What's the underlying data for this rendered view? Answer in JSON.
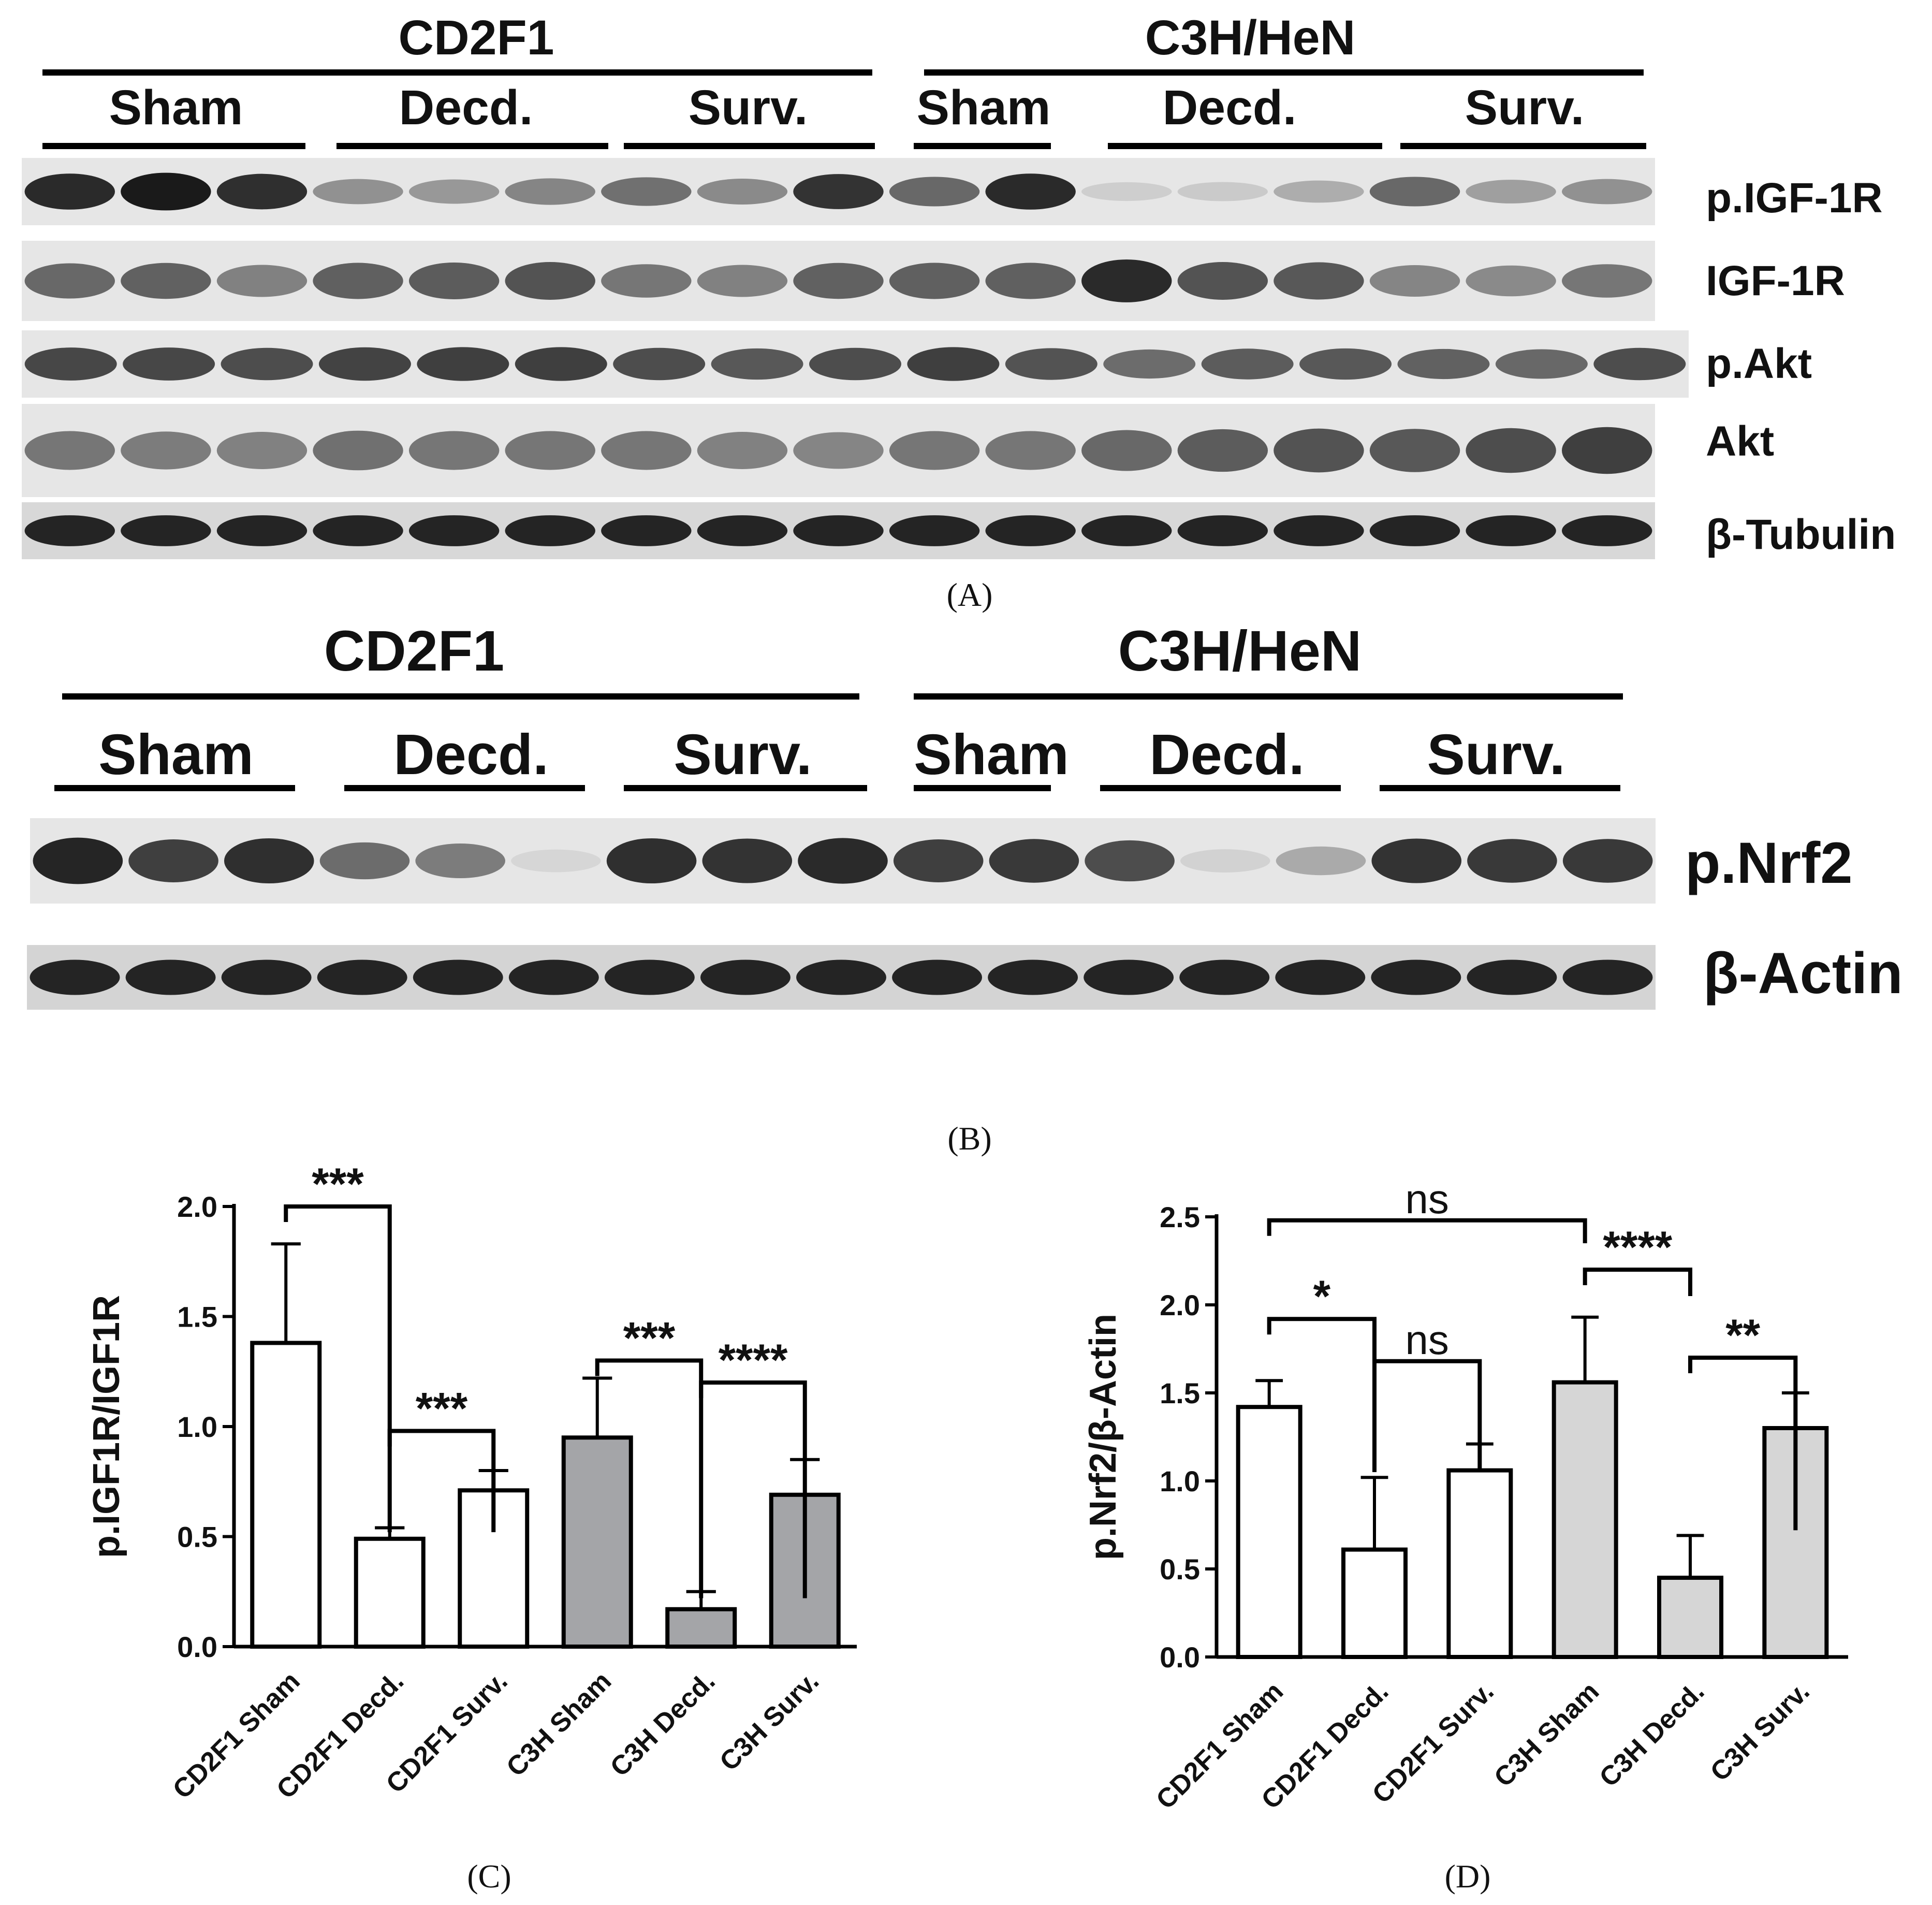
{
  "panel_a": {
    "caption": "(A)",
    "strains": [
      "CD2F1",
      "C3H/HeN"
    ],
    "groups": [
      "Sham",
      "Decd.",
      "Surv.",
      "Sham",
      "Decd.",
      "Surv."
    ],
    "bands": [
      {
        "label": "p.IGF-1R",
        "intensity": [
          0.92,
          1.0,
          0.9,
          0.42,
          0.38,
          0.48,
          0.58,
          0.45,
          0.88,
          0.62,
          0.92,
          0.12,
          0.14,
          0.28,
          0.62,
          0.35,
          0.42
        ]
      },
      {
        "label": "IGF-1R",
        "intensity": [
          0.62,
          0.65,
          0.5,
          0.66,
          0.68,
          0.72,
          0.55,
          0.5,
          0.65,
          0.66,
          0.66,
          0.92,
          0.72,
          0.7,
          0.48,
          0.45,
          0.55
        ]
      },
      {
        "label": "p.Akt",
        "intensity": [
          0.78,
          0.78,
          0.75,
          0.8,
          0.82,
          0.82,
          0.75,
          0.7,
          0.75,
          0.82,
          0.72,
          0.6,
          0.68,
          0.7,
          0.65,
          0.62,
          0.75
        ]
      },
      {
        "label": "Akt",
        "intensity": [
          0.55,
          0.52,
          0.5,
          0.58,
          0.55,
          0.55,
          0.55,
          0.5,
          0.48,
          0.55,
          0.55,
          0.62,
          0.68,
          0.72,
          0.7,
          0.75,
          0.82
        ]
      },
      {
        "label": "β-Tubulin",
        "intensity": [
          0.95,
          0.95,
          0.95,
          0.95,
          0.95,
          0.95,
          0.95,
          0.95,
          0.95,
          0.95,
          0.95,
          0.95,
          0.95,
          0.95,
          0.95,
          0.95,
          0.95
        ]
      }
    ]
  },
  "panel_b": {
    "caption": "(B)",
    "strains": [
      "CD2F1",
      "C3H/HeN"
    ],
    "groups": [
      "Sham",
      "Decd.",
      "Surv.",
      "Sham",
      "Decd.",
      "Surv."
    ],
    "bands": [
      {
        "label": "p.Nrf2",
        "intensity": [
          0.95,
          0.82,
          0.9,
          0.6,
          0.52,
          0.08,
          0.9,
          0.88,
          0.92,
          0.82,
          0.85,
          0.75,
          0.1,
          0.3,
          0.88,
          0.85,
          0.85
        ]
      },
      {
        "label": "β-Actin",
        "intensity": [
          0.95,
          0.95,
          0.95,
          0.95,
          0.95,
          0.95,
          0.95,
          0.95,
          0.95,
          0.95,
          0.95,
          0.95,
          0.95,
          0.95,
          0.95,
          0.95,
          0.95
        ]
      }
    ]
  },
  "chart_data": [
    {
      "type": "bar",
      "caption": "(C)",
      "ylabel": "p.IGF1R/IGF1R",
      "categories": [
        "CD2F1 Sham",
        "CD2F1 Decd.",
        "CD2F1 Surv.",
        "C3H Sham",
        "C3H Decd.",
        "C3H Surv."
      ],
      "values": [
        1.38,
        0.49,
        0.71,
        0.95,
        0.17,
        0.69
      ],
      "errors": [
        0.45,
        0.05,
        0.09,
        0.27,
        0.08,
        0.16
      ],
      "fills": [
        "#ffffff",
        "#ffffff",
        "#ffffff",
        "#a4a5a8",
        "#a4a5a8",
        "#a4a5a8"
      ],
      "ylim": [
        0,
        2.0
      ],
      "yticks": [
        "0.0",
        "0.5",
        "1.0",
        "1.5",
        "2.0"
      ],
      "significance": [
        {
          "from": 0,
          "to": 1,
          "label": "***",
          "y": 2.0,
          "dropTo": 0.52
        },
        {
          "from": 1,
          "to": 2,
          "label": "***",
          "y": 0.98,
          "dropTo": 0.52
        },
        {
          "from": 3,
          "to": 4,
          "label": "***",
          "y": 1.3,
          "dropTo": 0.22
        },
        {
          "from": 4,
          "to": 5,
          "label": "****",
          "y": 1.2,
          "dropTo": 0.22
        }
      ]
    },
    {
      "type": "bar",
      "caption": "(D)",
      "ylabel": "p.Nrf2/β-Actin",
      "categories": [
        "CD2F1 Sham",
        "CD2F1 Decd.",
        "CD2F1 Surv.",
        "C3H Sham",
        "C3H Decd.",
        "C3H Surv."
      ],
      "values": [
        1.42,
        0.61,
        1.06,
        1.56,
        0.45,
        1.3
      ],
      "errors": [
        0.15,
        0.41,
        0.15,
        0.37,
        0.24,
        0.2
      ],
      "fills": [
        "#ffffff",
        "#ffffff",
        "#ffffff",
        "#d6d6d6",
        "#d6d6d6",
        "#d6d6d6"
      ],
      "ylim": [
        0,
        2.5
      ],
      "yticks": [
        "0.0",
        "0.5",
        "1.0",
        "1.5",
        "2.0",
        "2.5"
      ],
      "significance": [
        {
          "from": 0,
          "to": 3,
          "label": "ns",
          "y": 2.48,
          "dropTo": 2.35
        },
        {
          "from": 0,
          "to": 1,
          "label": "*",
          "y": 1.92,
          "dropTo": 1.05
        },
        {
          "from": 1,
          "to": 2,
          "label": "ns",
          "y": 1.68,
          "dropTo": 1.05
        },
        {
          "from": 3,
          "to": 4,
          "label": "****",
          "y": 2.2,
          "dropTo": 2.05
        },
        {
          "from": 4,
          "to": 5,
          "label": "**",
          "y": 1.7,
          "dropTo": 0.72
        }
      ]
    }
  ]
}
